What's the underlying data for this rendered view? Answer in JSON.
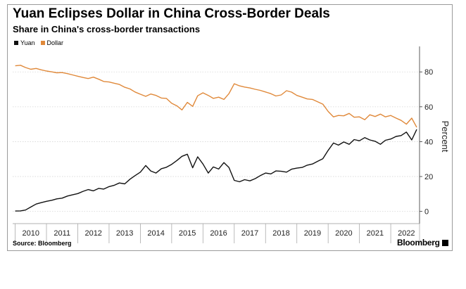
{
  "title": "Yuan Eclipses Dollar in China Cross-Border Deals",
  "subtitle": "Share in China's cross-border transactions",
  "source": "Source: Bloomberg",
  "brand": "Bloomberg",
  "chart_data": {
    "type": "line",
    "ylabel": "Percent",
    "ylim": [
      -7,
      93
    ],
    "yticks": [
      0,
      20,
      40,
      60,
      80
    ],
    "xlim": [
      2009.92,
      2022.92
    ],
    "xtick_labels": [
      "2010",
      "2011",
      "2012",
      "2013",
      "2014",
      "2015",
      "2016",
      "2017",
      "2018",
      "2019",
      "2020",
      "2021",
      "2022"
    ],
    "grid": true,
    "legend_position": "top-left",
    "series": [
      {
        "name": "Yuan",
        "color": "#111111",
        "points": [
          [
            2010.0,
            0.2
          ],
          [
            2010.17,
            0.3
          ],
          [
            2010.33,
            0.8
          ],
          [
            2010.5,
            2.5
          ],
          [
            2010.67,
            4.2
          ],
          [
            2010.83,
            5.0
          ],
          [
            2011.0,
            5.8
          ],
          [
            2011.17,
            6.4
          ],
          [
            2011.33,
            7.2
          ],
          [
            2011.5,
            7.6
          ],
          [
            2011.67,
            8.8
          ],
          [
            2011.83,
            9.5
          ],
          [
            2012.0,
            10.2
          ],
          [
            2012.17,
            11.5
          ],
          [
            2012.33,
            12.5
          ],
          [
            2012.5,
            11.8
          ],
          [
            2012.67,
            13.2
          ],
          [
            2012.83,
            12.8
          ],
          [
            2013.0,
            14.2
          ],
          [
            2013.17,
            15.0
          ],
          [
            2013.33,
            16.3
          ],
          [
            2013.5,
            15.8
          ],
          [
            2013.67,
            18.5
          ],
          [
            2013.83,
            20.5
          ],
          [
            2014.0,
            22.5
          ],
          [
            2014.17,
            26.3
          ],
          [
            2014.33,
            23.2
          ],
          [
            2014.5,
            22.0
          ],
          [
            2014.67,
            24.5
          ],
          [
            2014.83,
            25.3
          ],
          [
            2015.0,
            27.0
          ],
          [
            2015.17,
            29.2
          ],
          [
            2015.33,
            31.6
          ],
          [
            2015.5,
            32.8
          ],
          [
            2015.67,
            25.0
          ],
          [
            2015.83,
            31.3
          ],
          [
            2016.0,
            27.2
          ],
          [
            2016.17,
            22.0
          ],
          [
            2016.33,
            25.5
          ],
          [
            2016.5,
            24.3
          ],
          [
            2016.67,
            28.0
          ],
          [
            2016.83,
            25.2
          ],
          [
            2017.0,
            17.8
          ],
          [
            2017.17,
            17.0
          ],
          [
            2017.33,
            18.2
          ],
          [
            2017.5,
            17.5
          ],
          [
            2017.67,
            18.8
          ],
          [
            2017.83,
            20.5
          ],
          [
            2018.0,
            22.0
          ],
          [
            2018.17,
            21.5
          ],
          [
            2018.33,
            23.2
          ],
          [
            2018.5,
            23.0
          ],
          [
            2018.67,
            22.5
          ],
          [
            2018.83,
            24.2
          ],
          [
            2019.0,
            24.8
          ],
          [
            2019.17,
            25.2
          ],
          [
            2019.33,
            26.5
          ],
          [
            2019.5,
            27.2
          ],
          [
            2019.67,
            28.8
          ],
          [
            2019.83,
            30.2
          ],
          [
            2020.0,
            35.0
          ],
          [
            2020.17,
            39.2
          ],
          [
            2020.33,
            38.0
          ],
          [
            2020.5,
            39.8
          ],
          [
            2020.67,
            38.5
          ],
          [
            2020.83,
            41.2
          ],
          [
            2021.0,
            40.5
          ],
          [
            2021.17,
            42.3
          ],
          [
            2021.33,
            41.0
          ],
          [
            2021.5,
            40.2
          ],
          [
            2021.67,
            38.5
          ],
          [
            2021.83,
            40.8
          ],
          [
            2022.0,
            41.5
          ],
          [
            2022.17,
            43.0
          ],
          [
            2022.33,
            43.5
          ],
          [
            2022.5,
            45.5
          ],
          [
            2022.67,
            41.0
          ],
          [
            2022.83,
            47.0
          ]
        ]
      },
      {
        "name": "Dollar",
        "color": "#e0893a",
        "points": [
          [
            2010.0,
            83.5
          ],
          [
            2010.17,
            83.8
          ],
          [
            2010.33,
            82.5
          ],
          [
            2010.5,
            81.5
          ],
          [
            2010.67,
            82.0
          ],
          [
            2010.83,
            81.2
          ],
          [
            2011.0,
            80.5
          ],
          [
            2011.17,
            80.0
          ],
          [
            2011.33,
            79.5
          ],
          [
            2011.5,
            79.6
          ],
          [
            2011.67,
            79.0
          ],
          [
            2011.83,
            78.3
          ],
          [
            2012.0,
            77.5
          ],
          [
            2012.17,
            76.8
          ],
          [
            2012.33,
            76.2
          ],
          [
            2012.5,
            77.0
          ],
          [
            2012.67,
            75.8
          ],
          [
            2012.83,
            74.5
          ],
          [
            2013.0,
            74.2
          ],
          [
            2013.17,
            73.5
          ],
          [
            2013.33,
            72.8
          ],
          [
            2013.5,
            71.2
          ],
          [
            2013.67,
            70.2
          ],
          [
            2013.83,
            68.5
          ],
          [
            2014.0,
            67.2
          ],
          [
            2014.17,
            66.0
          ],
          [
            2014.33,
            67.3
          ],
          [
            2014.5,
            66.5
          ],
          [
            2014.67,
            65.0
          ],
          [
            2014.83,
            64.8
          ],
          [
            2015.0,
            62.0
          ],
          [
            2015.17,
            60.5
          ],
          [
            2015.33,
            58.2
          ],
          [
            2015.5,
            62.5
          ],
          [
            2015.67,
            60.2
          ],
          [
            2015.83,
            66.3
          ],
          [
            2016.0,
            68.0
          ],
          [
            2016.17,
            66.5
          ],
          [
            2016.33,
            64.8
          ],
          [
            2016.5,
            65.5
          ],
          [
            2016.67,
            64.2
          ],
          [
            2016.83,
            67.5
          ],
          [
            2017.0,
            73.2
          ],
          [
            2017.17,
            72.0
          ],
          [
            2017.33,
            71.3
          ],
          [
            2017.5,
            70.8
          ],
          [
            2017.67,
            70.0
          ],
          [
            2017.83,
            69.4
          ],
          [
            2018.0,
            68.5
          ],
          [
            2018.17,
            67.5
          ],
          [
            2018.33,
            66.2
          ],
          [
            2018.5,
            66.8
          ],
          [
            2018.67,
            69.2
          ],
          [
            2018.83,
            68.4
          ],
          [
            2019.0,
            66.5
          ],
          [
            2019.17,
            65.5
          ],
          [
            2019.33,
            64.5
          ],
          [
            2019.5,
            64.2
          ],
          [
            2019.67,
            62.8
          ],
          [
            2019.83,
            61.5
          ],
          [
            2020.0,
            57.3
          ],
          [
            2020.17,
            54.2
          ],
          [
            2020.33,
            55.0
          ],
          [
            2020.5,
            54.8
          ],
          [
            2020.67,
            56.2
          ],
          [
            2020.83,
            54.0
          ],
          [
            2021.0,
            54.2
          ],
          [
            2021.17,
            52.6
          ],
          [
            2021.33,
            55.4
          ],
          [
            2021.5,
            54.4
          ],
          [
            2021.67,
            55.8
          ],
          [
            2021.83,
            54.2
          ],
          [
            2022.0,
            55.0
          ],
          [
            2022.17,
            53.5
          ],
          [
            2022.33,
            52.2
          ],
          [
            2022.5,
            50.0
          ],
          [
            2022.67,
            53.5
          ],
          [
            2022.83,
            48.2
          ]
        ]
      }
    ]
  }
}
